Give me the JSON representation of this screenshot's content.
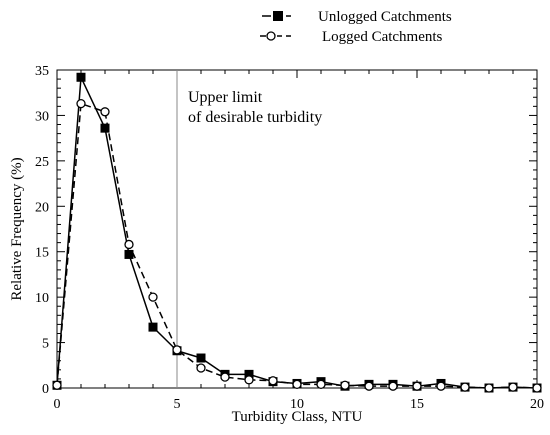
{
  "chart_data": {
    "type": "line",
    "title": "",
    "xlabel": "Turbidity Class, NTU",
    "ylabel": "Relative Frequency (%)",
    "xlim": [
      0,
      20
    ],
    "ylim": [
      0,
      35
    ],
    "xticks": [
      0,
      5,
      10,
      15,
      20
    ],
    "yticks": [
      0,
      5,
      10,
      15,
      20,
      25,
      30,
      35
    ],
    "grid": false,
    "legend": "top-right",
    "annotations": [
      {
        "lines": [
          "Upper limit",
          "of desirable turbidity"
        ],
        "at_x": 5
      }
    ],
    "series": [
      {
        "name": "Unlogged Catchments",
        "marker": "filled-square",
        "line": "solid",
        "x": [
          0,
          1,
          2,
          3,
          4,
          5,
          6,
          7,
          8,
          9,
          10,
          11,
          12,
          13,
          14,
          15,
          16,
          17,
          18,
          19,
          20
        ],
        "y": [
          0.3,
          34.2,
          28.6,
          14.7,
          6.7,
          4.1,
          3.3,
          1.5,
          1.5,
          0.7,
          0.5,
          0.7,
          0.2,
          0.4,
          0.4,
          0.2,
          0.5,
          0.1,
          0.0,
          0.1,
          0.0
        ]
      },
      {
        "name": "Logged Catchments",
        "marker": "open-circle",
        "line": "dashed",
        "x": [
          0,
          1,
          2,
          3,
          4,
          5,
          6,
          7,
          8,
          9,
          10,
          11,
          12,
          13,
          14,
          15,
          16,
          17,
          18,
          19,
          20
        ],
        "y": [
          0.3,
          31.3,
          30.4,
          15.8,
          10.0,
          4.2,
          2.2,
          1.2,
          0.9,
          0.8,
          0.4,
          0.4,
          0.3,
          0.2,
          0.2,
          0.2,
          0.2,
          0.1,
          0.0,
          0.1,
          0.0
        ]
      }
    ]
  }
}
